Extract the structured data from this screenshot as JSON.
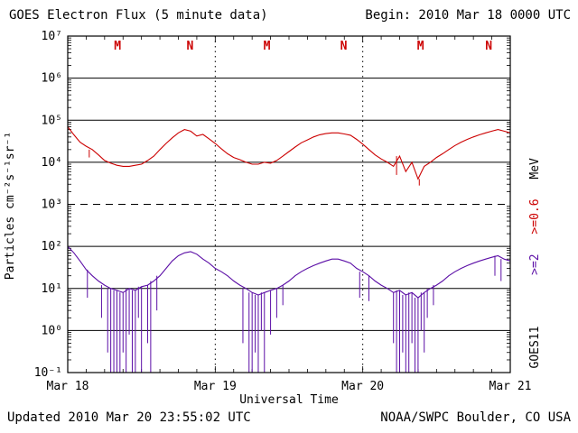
{
  "chart_data": {
    "type": "line",
    "title": "GOES Electron Flux (5 minute data)",
    "begin_label": "Begin: 2010 Mar 18 0000 UTC",
    "xlabel": "Universal Time",
    "ylabel": "Particles cm⁻²s⁻¹sr⁻¹",
    "y_scale": "log10",
    "ylim": [
      0.1,
      10000000
    ],
    "ytick_exponents": [
      -1,
      0,
      1,
      2,
      3,
      4,
      5,
      6,
      7
    ],
    "yticklabels": [
      "10⁻¹",
      "10⁰",
      "10¹",
      "10²",
      "10³",
      "10⁴",
      "10⁵",
      "10⁶",
      "10⁷"
    ],
    "x_range_hours": [
      0,
      72
    ],
    "xticks_hours": [
      0,
      24,
      48,
      72
    ],
    "xticklabels": [
      "Mar 18",
      "Mar 19",
      "Mar 20",
      "Mar 21"
    ],
    "threshold_value": 1000,
    "day_boundaries_hours": [
      24,
      48
    ],
    "grid": "decade horizontal lines, dashed alert line at 10^3, dotted day boundaries",
    "local_time_markers": {
      "color": "#cc0000",
      "items": [
        {
          "label": "M",
          "hour": 8.1
        },
        {
          "label": "N",
          "hour": 19.9
        },
        {
          "label": "M",
          "hour": 32.4
        },
        {
          "label": "N",
          "hour": 44.9
        },
        {
          "label": "M",
          "hour": 57.4
        },
        {
          "label": "N",
          "hour": 68.5
        }
      ]
    },
    "right_labels": {
      "ge2": ">=2",
      "ge06": ">=0.6",
      "mev": "MeV",
      "satellite": "GOES11"
    },
    "series": [
      {
        "name": ">=0.6 MeV",
        "color": "#cc0000",
        "x_start": 0,
        "x_step_hours": 1,
        "values": [
          70000,
          45000,
          30000,
          24000,
          20000,
          15000,
          11000,
          9500,
          8500,
          8000,
          8000,
          8500,
          9000,
          11000,
          14000,
          20000,
          28000,
          38000,
          50000,
          60000,
          55000,
          42000,
          46000,
          36000,
          28000,
          21000,
          16000,
          13000,
          11500,
          10000,
          9000,
          9000,
          10000,
          9500,
          11000,
          14000,
          18000,
          23000,
          29000,
          34000,
          40000,
          45000,
          48000,
          50000,
          50000,
          47000,
          44000,
          35000,
          27000,
          20000,
          15000,
          12000,
          10000,
          8000,
          14000,
          6000,
          10000,
          4000,
          8000,
          10000,
          13000,
          16000,
          20000,
          25000,
          30000,
          35000,
          40000,
          45000,
          50000,
          55000,
          60000,
          55000,
          50000
        ],
        "spikes": [
          [
            3.5,
            13000
          ],
          [
            53.5,
            5000
          ],
          [
            57.2,
            2800
          ]
        ]
      },
      {
        "name": ">=2 MeV",
        "color": "#5b0ea6",
        "x_start": 0,
        "x_step_hours": 1,
        "values": [
          100,
          70,
          45,
          28,
          20,
          15,
          12,
          10,
          9,
          8,
          10,
          9,
          11,
          12,
          15,
          20,
          30,
          45,
          60,
          70,
          75,
          65,
          50,
          40,
          30,
          25,
          20,
          15,
          12,
          10,
          8,
          7,
          8,
          9,
          10,
          12,
          15,
          20,
          25,
          30,
          35,
          40,
          45,
          50,
          50,
          45,
          40,
          30,
          25,
          20,
          15,
          12,
          10,
          8,
          9,
          7,
          8,
          6,
          8,
          10,
          12,
          15,
          20,
          25,
          30,
          35,
          40,
          45,
          50,
          55,
          60,
          50,
          45
        ],
        "spikes": [
          [
            3.2,
            6
          ],
          [
            5.5,
            2
          ],
          [
            6.5,
            0.3
          ],
          [
            7,
            0.1
          ],
          [
            7.5,
            0.1
          ],
          [
            8,
            0.1
          ],
          [
            8.5,
            0.1
          ],
          [
            9,
            0.3
          ],
          [
            9.5,
            0.1
          ],
          [
            10,
            0.8
          ],
          [
            10.5,
            0.1
          ],
          [
            11,
            0.1
          ],
          [
            11.5,
            2
          ],
          [
            12,
            0.1
          ],
          [
            13,
            0.5
          ],
          [
            13.5,
            0.1
          ],
          [
            14.5,
            3
          ],
          [
            28.5,
            0.5
          ],
          [
            29.5,
            0.1
          ],
          [
            30,
            0.1
          ],
          [
            30.5,
            0.3
          ],
          [
            31,
            0.1
          ],
          [
            31.5,
            1
          ],
          [
            32,
            0.1
          ],
          [
            33,
            0.8
          ],
          [
            34,
            2
          ],
          [
            35,
            4
          ],
          [
            47.5,
            6
          ],
          [
            49,
            5
          ],
          [
            53,
            0.5
          ],
          [
            53.5,
            0.1
          ],
          [
            54,
            0.1
          ],
          [
            54.5,
            0.3
          ],
          [
            55,
            0.1
          ],
          [
            55.5,
            0.1
          ],
          [
            56,
            0.5
          ],
          [
            56.5,
            0.1
          ],
          [
            57,
            0.1
          ],
          [
            57.5,
            1
          ],
          [
            58,
            0.3
          ],
          [
            58.5,
            2
          ],
          [
            59.5,
            4
          ],
          [
            69.5,
            20
          ],
          [
            70.5,
            15
          ]
        ]
      }
    ]
  },
  "footer": {
    "updated": "Updated 2010 Mar 20 23:55:02 UTC",
    "credit": "NOAA/SWPC Boulder, CO USA"
  }
}
